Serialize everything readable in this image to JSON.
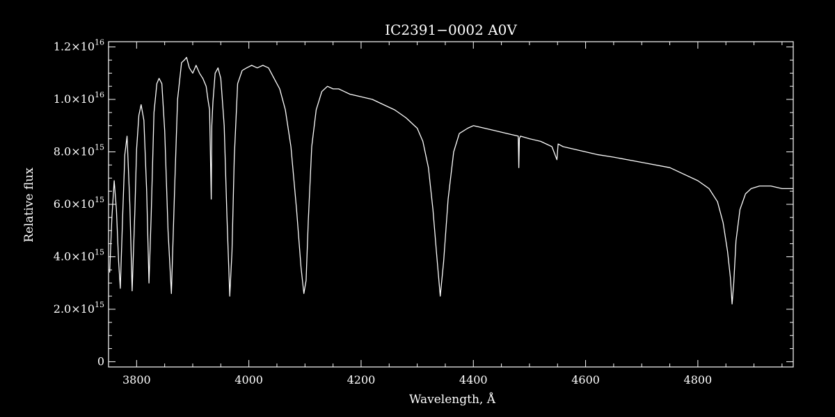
{
  "chart_data": {
    "type": "line",
    "title": "IC2391−0002  A0V",
    "xlabel": "Wavelength, Å",
    "ylabel": "Relative flux",
    "xlim": [
      3750,
      4970
    ],
    "ylim": [
      -200000000000000.0,
      1.22e+16
    ],
    "grid": false,
    "legend": "none",
    "colors": {
      "background": "#000000",
      "foreground": "#ffffff"
    },
    "x_ticks": [
      {
        "value": 3800,
        "label": "3800"
      },
      {
        "value": 4000,
        "label": "4000"
      },
      {
        "value": 4200,
        "label": "4200"
      },
      {
        "value": 4400,
        "label": "4400"
      },
      {
        "value": 4600,
        "label": "4600"
      },
      {
        "value": 4800,
        "label": "4800"
      }
    ],
    "y_ticks": [
      {
        "value": 0,
        "mant": "0",
        "exp": ""
      },
      {
        "value": 2000000000000000.0,
        "mant": "2.0×10",
        "exp": "15"
      },
      {
        "value": 4000000000000000.0,
        "mant": "4.0×10",
        "exp": "15"
      },
      {
        "value": 6000000000000000.0,
        "mant": "6.0×10",
        "exp": "15"
      },
      {
        "value": 8000000000000000.0,
        "mant": "8.0×10",
        "exp": "15"
      },
      {
        "value": 1e+16,
        "mant": "1.0×10",
        "exp": "16"
      },
      {
        "value": 1.2e+16,
        "mant": "1.2×10",
        "exp": "16"
      }
    ],
    "series": [
      {
        "x": [
          3752,
          3756,
          3760,
          3764,
          3768,
          3771,
          3775,
          3779,
          3783,
          3788,
          3792,
          3797,
          3800,
          3804,
          3808,
          3813,
          3818,
          3822,
          3826,
          3831,
          3836,
          3840,
          3845,
          3850,
          3856,
          3862,
          3868,
          3873,
          3880,
          3885,
          3889,
          3894,
          3900,
          3906,
          3912,
          3918,
          3924,
          3927,
          3930,
          3933,
          3934,
          3936,
          3940,
          3945,
          3950,
          3956,
          3961,
          3966,
          3970,
          3974,
          3980,
          3988,
          3996,
          4005,
          4015,
          4025,
          4035,
          4045,
          4055,
          4065,
          4075,
          4085,
          4093,
          4098,
          4102,
          4106,
          4112,
          4120,
          4130,
          4140,
          4150,
          4160,
          4170,
          4180,
          4200,
          4220,
          4240,
          4260,
          4280,
          4300,
          4310,
          4320,
          4328,
          4335,
          4341,
          4347,
          4355,
          4365,
          4375,
          4390,
          4400,
          4420,
          4440,
          4460,
          4480,
          4481,
          4482,
          4484,
          4500,
          4520,
          4540,
          4549,
          4550,
          4551,
          4560,
          4580,
          4600,
          4620,
          4650,
          4700,
          4750,
          4800,
          4820,
          4835,
          4845,
          4853,
          4858,
          4861,
          4864,
          4868,
          4875,
          4885,
          4895,
          4910,
          4930,
          4950,
          4970
        ],
        "y": [
          3400000000000000.0,
          5500000000000000.0,
          6900000000000000.0,
          5800000000000000.0,
          3800000000000000.0,
          2800000000000000.0,
          5500000000000000.0,
          7900000000000000.0,
          8600000000000000.0,
          6000000000000000.0,
          2700000000000000.0,
          5800000000000000.0,
          8100000000000000.0,
          9400000000000000.0,
          9800000000000000.0,
          9200000000000000.0,
          6500000000000000.0,
          3000000000000000.0,
          5600000000000000.0,
          9500000000000000.0,
          1.06e+16,
          1.08e+16,
          1.06e+16,
          8800000000000000.0,
          5000000000000000.0,
          2600000000000000.0,
          6800000000000000.0,
          1e+16,
          1.14e+16,
          1.15e+16,
          1.16e+16,
          1.12e+16,
          1.1e+16,
          1.13e+16,
          1.1e+16,
          1.08e+16,
          1.05e+16,
          1e+16,
          9600000000000000.0,
          6200000000000000.0,
          9000000000000000.0,
          9900000000000000.0,
          1.1e+16,
          1.12e+16,
          1.08e+16,
          9000000000000000.0,
          5500000000000000.0,
          2500000000000000.0,
          4200000000000000.0,
          7800000000000000.0,
          1.06e+16,
          1.11e+16,
          1.12e+16,
          1.13e+16,
          1.12e+16,
          1.13e+16,
          1.12e+16,
          1.08e+16,
          1.04e+16,
          9600000000000000.0,
          8200000000000000.0,
          5800000000000000.0,
          3600000000000000.0,
          2600000000000000.0,
          3100000000000000.0,
          5400000000000000.0,
          8200000000000000.0,
          9600000000000000.0,
          1.03e+16,
          1.05e+16,
          1.04e+16,
          1.04e+16,
          1.03e+16,
          1.02e+16,
          1.01e+16,
          1e+16,
          9800000000000000.0,
          9600000000000000.0,
          9300000000000000.0,
          8900000000000000.0,
          8400000000000000.0,
          7400000000000000.0,
          5800000000000000.0,
          4000000000000000.0,
          2500000000000000.0,
          3800000000000000.0,
          6200000000000000.0,
          8000000000000000.0,
          8700000000000000.0,
          8900000000000000.0,
          9000000000000000.0,
          8900000000000000.0,
          8800000000000000.0,
          8700000000000000.0,
          8600000000000000.0,
          7400000000000000.0,
          8500000000000000.0,
          8600000000000000.0,
          8500000000000000.0,
          8400000000000000.0,
          8200000000000000.0,
          7700000000000000.0,
          8000000000000000.0,
          8300000000000000.0,
          8200000000000000.0,
          8100000000000000.0,
          8000000000000000.0,
          7900000000000000.0,
          7800000000000000.0,
          7600000000000000.0,
          7400000000000000.0,
          6900000000000000.0,
          6600000000000000.0,
          6100000000000000.0,
          5300000000000000.0,
          4200000000000000.0,
          3200000000000000.0,
          2200000000000000.0,
          3000000000000000.0,
          4600000000000000.0,
          5800000000000000.0,
          6400000000000000.0,
          6600000000000000.0,
          6700000000000000.0,
          6700000000000000.0,
          6600000000000000.0,
          6600000000000000.0
        ]
      }
    ]
  }
}
